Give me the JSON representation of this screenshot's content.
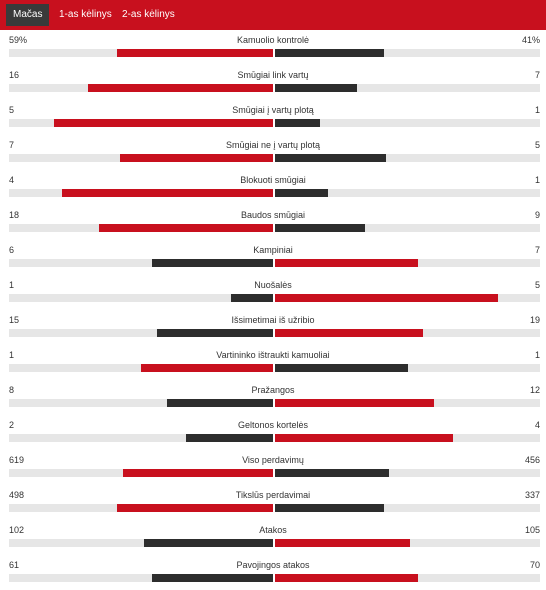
{
  "tabs": [
    {
      "label": "Mačas",
      "active": true
    },
    {
      "label": "1-as kėlinys",
      "active": false
    },
    {
      "label": "2-as kėlinys",
      "active": false
    }
  ],
  "colors": {
    "tab_bar": "#c8101e",
    "tab_active": "#3a3a3a",
    "bar_red": "#c8101e",
    "bar_dark": "#2d2d2d",
    "track": "#e6e6e6"
  },
  "stats": [
    {
      "label": "Kamuolio kontrolė",
      "home": "59%",
      "away": "41%",
      "home_share": 0.59,
      "away_share": 0.41
    },
    {
      "label": "Smūgiai link vartų",
      "home": "16",
      "away": "7",
      "home_share": 0.7,
      "away_share": 0.31
    },
    {
      "label": "Smūgiai į vartų plotą",
      "home": "5",
      "away": "1",
      "home_share": 0.83,
      "away_share": 0.17
    },
    {
      "label": "Smūgiai ne į vartų plotą",
      "home": "7",
      "away": "5",
      "home_share": 0.58,
      "away_share": 0.42
    },
    {
      "label": "Blokuoti smūgiai",
      "home": "4",
      "away": "1",
      "home_share": 0.8,
      "away_share": 0.2
    },
    {
      "label": "Baudos smūgiai",
      "home": "18",
      "away": "9",
      "home_share": 0.66,
      "away_share": 0.34
    },
    {
      "label": "Kampiniai",
      "home": "6",
      "away": "7",
      "home_share": 0.46,
      "away_share": 0.54
    },
    {
      "label": "Nuošalės",
      "home": "1",
      "away": "5",
      "home_share": 0.16,
      "away_share": 0.84
    },
    {
      "label": "Išsimetimai iš užribio",
      "home": "15",
      "away": "19",
      "home_share": 0.44,
      "away_share": 0.56
    },
    {
      "label": "Vartininko ištraukti kamuoliai",
      "home": "1",
      "away": "1",
      "home_share": 0.5,
      "away_share": 0.5
    },
    {
      "label": "Pražangos",
      "home": "8",
      "away": "12",
      "home_share": 0.4,
      "away_share": 0.6
    },
    {
      "label": "Geltonos kortelės",
      "home": "2",
      "away": "4",
      "home_share": 0.33,
      "away_share": 0.67
    },
    {
      "label": "Viso perdavimų",
      "home": "619",
      "away": "456",
      "home_share": 0.57,
      "away_share": 0.43
    },
    {
      "label": "Tikslūs perdavimai",
      "home": "498",
      "away": "337",
      "home_share": 0.59,
      "away_share": 0.41
    },
    {
      "label": "Atakos",
      "home": "102",
      "away": "105",
      "home_share": 0.49,
      "away_share": 0.51
    },
    {
      "label": "Pavojingos atakos",
      "home": "61",
      "away": "70",
      "home_share": 0.46,
      "away_share": 0.54
    }
  ]
}
